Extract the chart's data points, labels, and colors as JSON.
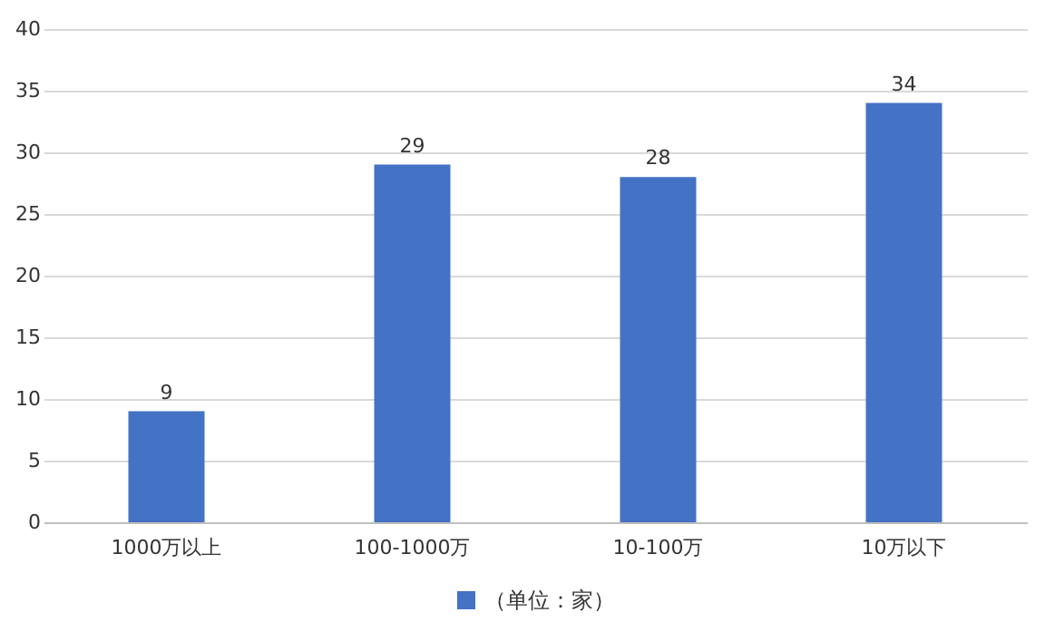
{
  "chart_data": {
    "type": "bar",
    "categories": [
      "1000万以上",
      "100-1000万",
      "10-100万",
      "10万以下"
    ],
    "series": [
      {
        "name": "（单位：家）",
        "color": "#4472c4",
        "values": [
          9,
          29,
          28,
          34
        ]
      }
    ],
    "ylim": [
      0,
      40
    ],
    "yticks": [
      0,
      5,
      10,
      15,
      20,
      25,
      30,
      35,
      40
    ],
    "grid": "y",
    "legend": "bottom",
    "data_labels": true
  }
}
